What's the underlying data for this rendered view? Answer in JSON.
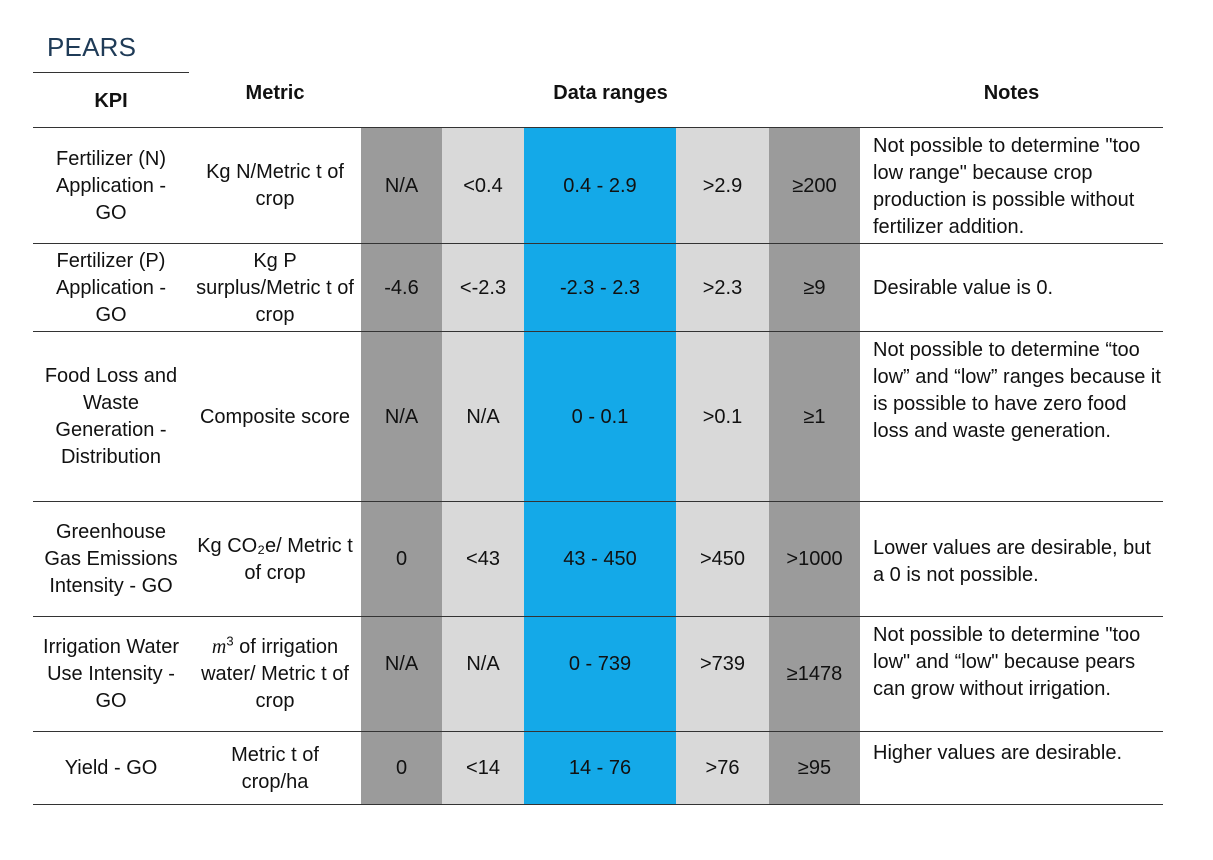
{
  "title": "PEARS",
  "headers": {
    "kpi": "KPI",
    "metric": "Metric",
    "ranges": "Data ranges",
    "notes": "Notes"
  },
  "colors": {
    "dark_gray": "#9b9b9b",
    "light_gray": "#d9d9d9",
    "blue": "#14a9e8"
  },
  "rows": [
    {
      "kpi": "Fertilizer (N) Application - GO",
      "metric": "Kg N/Metric t of crop",
      "r1": "N/A",
      "r2": "<0.4",
      "r3": "0.4 - 2.9",
      "r4": ">2.9",
      "r5": "≥200",
      "notes": "Not possible to determine \"too low range\" because crop production is possible without fertilizer addition."
    },
    {
      "kpi": "Fertilizer (P) Application - GO",
      "metric": "Kg P surplus/Metric t of crop",
      "r1": "-4.6",
      "r2": "<-2.3",
      "r3": "-2.3 - 2.3",
      "r4": ">2.3",
      "r5": "≥9",
      "notes": "Desirable value is 0."
    },
    {
      "kpi": "Food Loss and Waste Generation - Distribution",
      "metric": "Composite score",
      "r1": "N/A",
      "r2": "N/A",
      "r3": "0 - 0.1",
      "r4": ">0.1",
      "r5": "≥1",
      "notes": "Not possible to determine “too low” and “low” ranges because it is possible to have zero food loss and waste generation."
    },
    {
      "kpi": "Greenhouse Gas Emissions Intensity - GO",
      "metric": "Kg CO₂e/ Metric t of crop",
      "r1": "0",
      "r2": "<43",
      "r3": "43 - 450",
      "r4": ">450",
      "r5": ">1000",
      "notes": "Lower values are desirable, but a 0 is not possible."
    },
    {
      "kpi": "Irrigation Water Use Intensity - GO",
      "metric_symbol": "m",
      "metric_exp": "3",
      "metric": " of irrigation water/ Metric t of crop",
      "r1": "N/A",
      "r2": "N/A",
      "r3": "0 - 739",
      "r4": ">739",
      "r5": "≥1478",
      "notes": "Not possible to determine \"too low\" and “low\" because pears can grow without irrigation."
    },
    {
      "kpi": "Yield - GO",
      "metric": "Metric t of crop/ha",
      "r1": "0",
      "r2": "<14",
      "r3": "14 - 76",
      "r4": ">76",
      "r5": "≥95",
      "notes": "Higher values are desirable."
    }
  ]
}
